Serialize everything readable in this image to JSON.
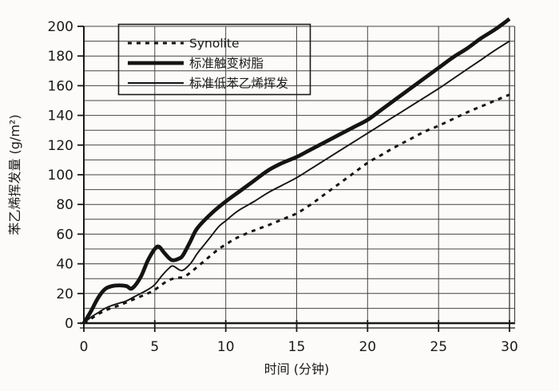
{
  "chart_data": {
    "type": "line",
    "title": "",
    "xlabel": "时间 (分钟)",
    "ylabel": "苯乙烯挥发量 (g/m²)",
    "xlim": [
      0,
      30
    ],
    "ylim": [
      0,
      200
    ],
    "xticks": [
      0,
      5,
      10,
      15,
      20,
      25,
      30
    ],
    "yticks": [
      0,
      20,
      40,
      60,
      80,
      100,
      120,
      140,
      160,
      180,
      200
    ],
    "grid": {
      "x_step": 5,
      "y_step": 10,
      "on": true
    },
    "legend_position": "top-left-inside",
    "series": [
      {
        "name": "Synolite",
        "style": "dotted",
        "points": [
          [
            0,
            0
          ],
          [
            0.5,
            3
          ],
          [
            1,
            6
          ],
          [
            1.5,
            8.5
          ],
          [
            2,
            10.5
          ],
          [
            2.5,
            12
          ],
          [
            3,
            14
          ],
          [
            3.5,
            16
          ],
          [
            4,
            18
          ],
          [
            4.5,
            20
          ],
          [
            5,
            22.5
          ],
          [
            5.5,
            26
          ],
          [
            6,
            29
          ],
          [
            6.5,
            30.5
          ],
          [
            7,
            31
          ],
          [
            7.5,
            34
          ],
          [
            8,
            38
          ],
          [
            8.5,
            42
          ],
          [
            9,
            46
          ],
          [
            9.5,
            50
          ],
          [
            10,
            53
          ],
          [
            10.5,
            56
          ],
          [
            11,
            58.5
          ],
          [
            12,
            62.5
          ],
          [
            13,
            66
          ],
          [
            14,
            70
          ],
          [
            15,
            74
          ],
          [
            16,
            80
          ],
          [
            17,
            87
          ],
          [
            18,
            94
          ],
          [
            19,
            101
          ],
          [
            20,
            108
          ],
          [
            21,
            113.5
          ],
          [
            22,
            119
          ],
          [
            23,
            124
          ],
          [
            24,
            129
          ],
          [
            25,
            133
          ],
          [
            26,
            137.5
          ],
          [
            27,
            142
          ],
          [
            28,
            146
          ],
          [
            29,
            150
          ],
          [
            30,
            154
          ]
        ]
      },
      {
        "name": "标准触变树脂",
        "style": "thick",
        "points": [
          [
            0,
            0
          ],
          [
            0.5,
            8
          ],
          [
            1,
            17
          ],
          [
            1.5,
            23
          ],
          [
            2,
            25
          ],
          [
            2.5,
            25.5
          ],
          [
            3,
            25
          ],
          [
            3.4,
            23.5
          ],
          [
            4,
            31
          ],
          [
            4.5,
            42
          ],
          [
            5,
            50
          ],
          [
            5.3,
            51.5
          ],
          [
            5.7,
            47
          ],
          [
            6.2,
            42.5
          ],
          [
            6.7,
            43.5
          ],
          [
            7,
            46
          ],
          [
            7.5,
            55
          ],
          [
            8,
            64
          ],
          [
            9,
            74
          ],
          [
            10,
            82
          ],
          [
            11,
            89
          ],
          [
            12,
            96
          ],
          [
            13,
            103
          ],
          [
            14,
            108
          ],
          [
            15,
            112
          ],
          [
            16,
            117
          ],
          [
            17,
            122
          ],
          [
            18,
            127
          ],
          [
            19,
            132
          ],
          [
            20,
            137
          ],
          [
            21,
            144
          ],
          [
            22,
            151
          ],
          [
            23,
            158
          ],
          [
            24,
            165
          ],
          [
            25,
            172
          ],
          [
            26,
            179
          ],
          [
            27,
            185
          ],
          [
            28,
            192
          ],
          [
            29,
            198
          ],
          [
            30,
            205
          ]
        ]
      },
      {
        "name": "标准低苯乙烯挥发",
        "style": "thin",
        "points": [
          [
            0,
            0
          ],
          [
            0.5,
            4
          ],
          [
            1,
            7
          ],
          [
            1.5,
            10
          ],
          [
            2,
            12
          ],
          [
            2.5,
            13.5
          ],
          [
            3,
            15
          ],
          [
            3.5,
            17.5
          ],
          [
            4,
            20
          ],
          [
            4.5,
            22.5
          ],
          [
            5,
            26
          ],
          [
            5.5,
            32
          ],
          [
            6,
            37
          ],
          [
            6.3,
            38.5
          ],
          [
            6.9,
            35.5
          ],
          [
            7.5,
            40
          ],
          [
            8,
            47
          ],
          [
            8.5,
            53
          ],
          [
            9,
            59
          ],
          [
            9.5,
            65
          ],
          [
            10,
            69
          ],
          [
            10.5,
            73
          ],
          [
            11,
            76.5
          ],
          [
            12,
            82
          ],
          [
            13,
            88
          ],
          [
            14,
            93
          ],
          [
            15,
            98
          ],
          [
            16,
            104
          ],
          [
            17,
            110
          ],
          [
            18,
            116
          ],
          [
            19,
            122
          ],
          [
            20,
            128
          ],
          [
            21,
            134
          ],
          [
            22,
            140
          ],
          [
            23,
            146
          ],
          [
            24,
            152
          ],
          [
            25,
            158
          ],
          [
            26,
            164.5
          ],
          [
            27,
            171
          ],
          [
            28,
            177.5
          ],
          [
            29,
            184
          ],
          [
            30,
            190
          ]
        ]
      }
    ],
    "colors": {
      "line": "#141414",
      "grid": "#454545",
      "axis": "#1a1a1a",
      "legend_border": "#1a1a1a",
      "background": "#fcfbf9"
    }
  }
}
